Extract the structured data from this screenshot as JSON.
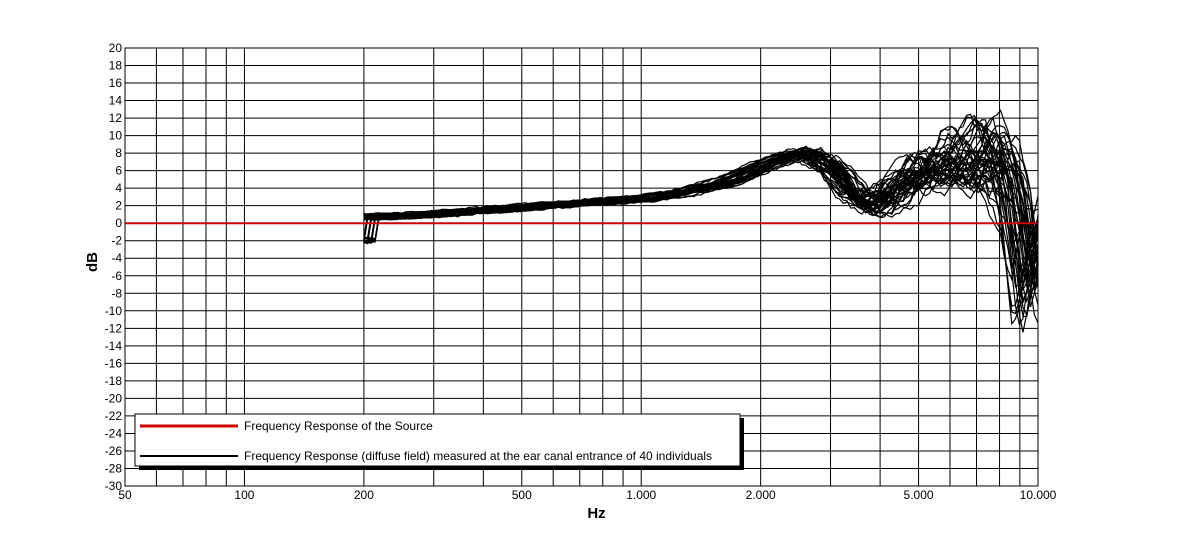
{
  "chart_data": {
    "type": "line",
    "title": "",
    "xlabel": "Hz",
    "ylabel": "dB",
    "x_scale": "log",
    "xlim": [
      50,
      10000
    ],
    "ylim": [
      -30,
      20
    ],
    "grid": true,
    "legend_position": "bottom-left",
    "x_ticks": [
      {
        "value": 50,
        "label": "50"
      },
      {
        "value": 100,
        "label": "100"
      },
      {
        "value": 200,
        "label": "200"
      },
      {
        "value": 500,
        "label": "500"
      },
      {
        "value": 1000,
        "label": "1.000"
      },
      {
        "value": 2000,
        "label": "2.000"
      },
      {
        "value": 5000,
        "label": "5.000"
      },
      {
        "value": 10000,
        "label": "10.000"
      }
    ],
    "y_ticks": [
      20,
      18,
      16,
      14,
      12,
      10,
      8,
      6,
      4,
      2,
      0,
      -2,
      -4,
      -6,
      -8,
      -10,
      -12,
      -14,
      -16,
      -18,
      -20,
      -22,
      -24,
      -26,
      -28,
      -30
    ],
    "colors": {
      "source": "#cc0000",
      "measured": "#000000"
    },
    "series": [
      {
        "name": "Frequency Response of the Source",
        "color": "#cc0000",
        "x": [
          50,
          10000
        ],
        "y": [
          0,
          0
        ]
      },
      {
        "name": "Frequency Response (diffuse field) measured at the ear canal entrance of 40 individuals",
        "color": "#000000",
        "x": [
          200,
          300,
          500,
          700,
          1000,
          1300,
          1700,
          2000,
          2300,
          2600,
          3000,
          3400,
          3800,
          4300,
          5000,
          5700,
          6500,
          7300,
          8000,
          8700,
          9300,
          10000
        ],
        "y": [
          0.7,
          1.0,
          1.8,
          2.3,
          2.8,
          3.5,
          5.0,
          6.5,
          7.5,
          8.0,
          6.5,
          3.5,
          2.0,
          3.5,
          5.5,
          6.5,
          7.5,
          8.0,
          7.0,
          2.0,
          -8.0,
          -2.0
        ]
      }
    ]
  }
}
